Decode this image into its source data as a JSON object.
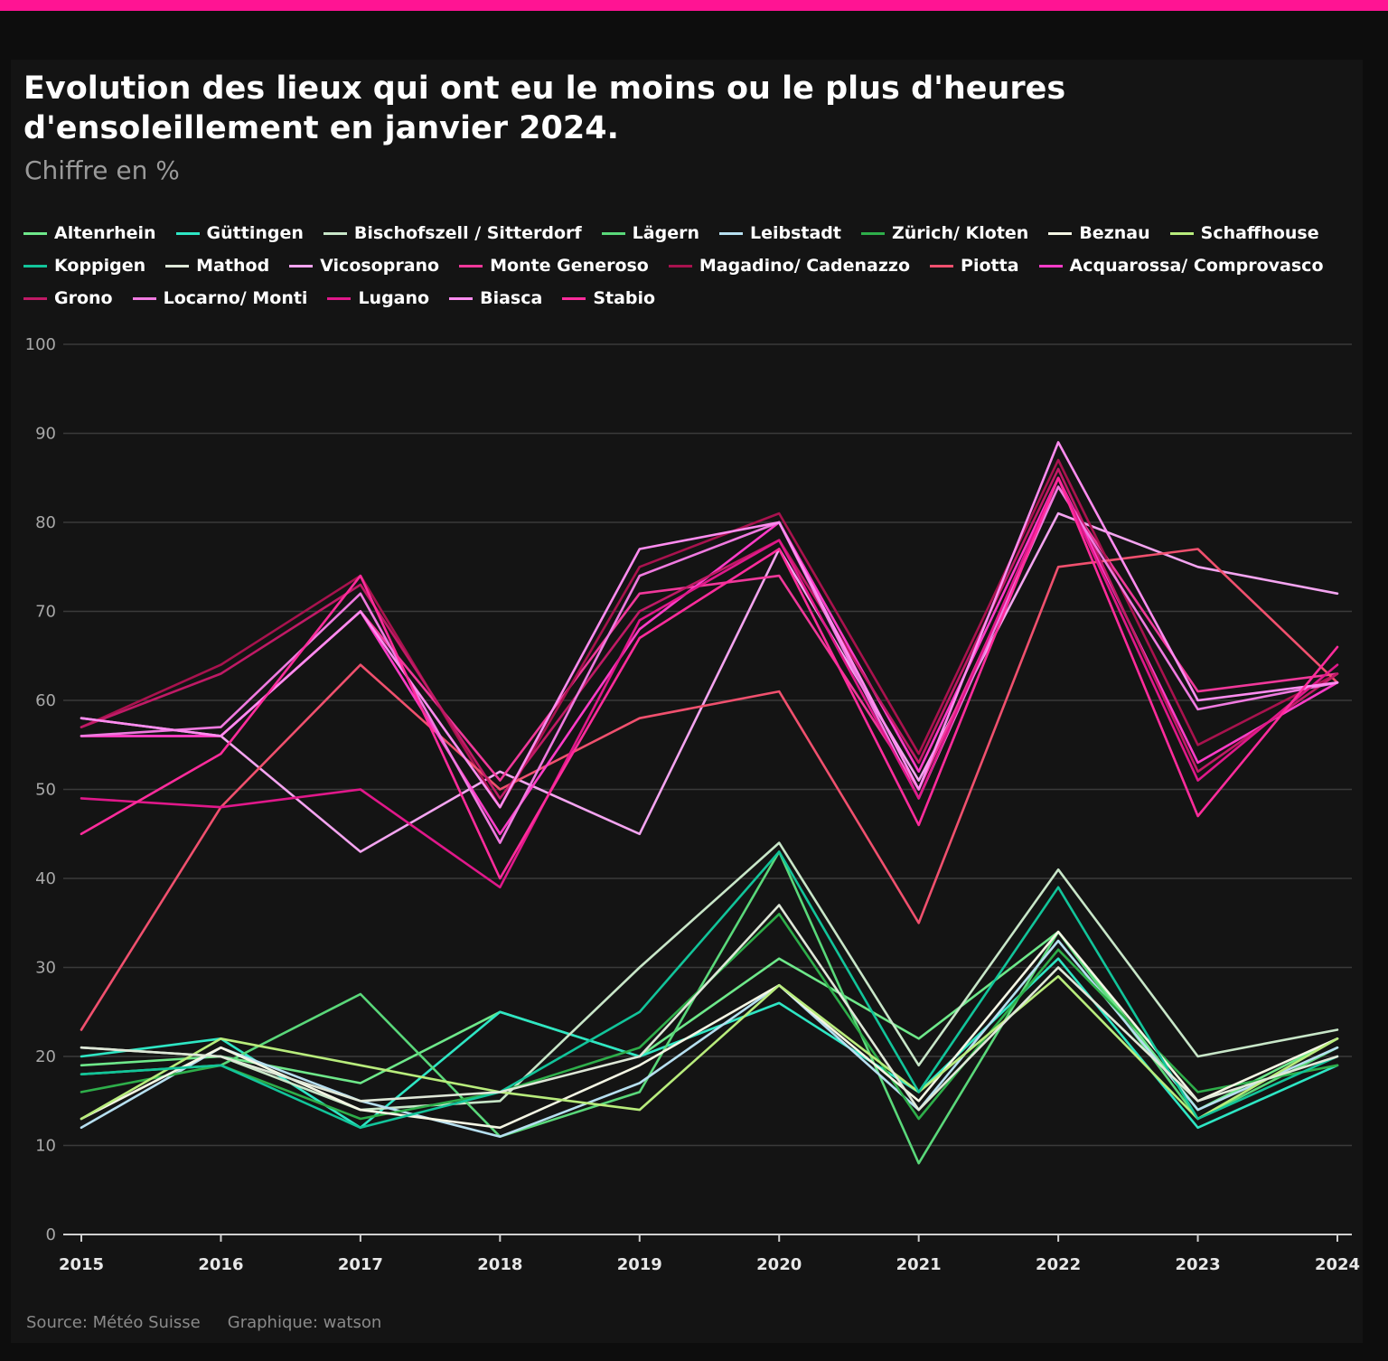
{
  "header": {
    "title": "Evolution des lieux qui ont eu le moins ou le plus d'heures d'ensoleillement en janvier 2024.",
    "subtitle": "Chiffre en %"
  },
  "footer": {
    "source": "Source: Météo Suisse",
    "graphic": "Graphique: watson"
  },
  "chart_data": {
    "type": "line",
    "title": "Evolution des lieux qui ont eu le moins ou le plus d'heures d'ensoleillement en janvier 2024.",
    "ylabel": "Chiffre en %",
    "xlabel": "",
    "ylim": [
      0,
      100
    ],
    "yticks": [
      0,
      10,
      20,
      30,
      40,
      50,
      60,
      70,
      80,
      90,
      100
    ],
    "x": [
      "2015",
      "2016",
      "2017",
      "2018",
      "2019",
      "2020",
      "2021",
      "2022",
      "2023",
      "2024"
    ],
    "legend_position": "top",
    "grid": true,
    "series": [
      {
        "name": "Altenrhein",
        "color": "#6ee88a",
        "values": [
          19,
          20,
          17,
          25,
          20,
          31,
          22,
          34,
          14,
          22
        ]
      },
      {
        "name": "Güttingen",
        "color": "#2ee6c4",
        "values": [
          20,
          22,
          12,
          25,
          20,
          26,
          16,
          31,
          12,
          19
        ]
      },
      {
        "name": "Bischofszell / Sitterdorf",
        "color": "#c8e6c8",
        "values": [
          21,
          20,
          14,
          15,
          30,
          44,
          19,
          41,
          20,
          23
        ]
      },
      {
        "name": "Lägern",
        "color": "#5ad87a",
        "values": [
          18,
          19,
          27,
          11,
          16,
          43,
          8,
          34,
          13,
          21
        ]
      },
      {
        "name": "Leibstadt",
        "color": "#b6dff0",
        "values": [
          12,
          21,
          15,
          11,
          17,
          28,
          14,
          33,
          14,
          21
        ]
      },
      {
        "name": "Zürich/ Kloten",
        "color": "#2eae4a",
        "values": [
          16,
          19,
          13,
          16,
          21,
          36,
          13,
          32,
          16,
          19
        ]
      },
      {
        "name": "Beznau",
        "color": "#f4f6e4",
        "values": [
          13,
          21,
          14,
          12,
          19,
          28,
          15,
          34,
          15,
          22
        ]
      },
      {
        "name": "Schaffhouse",
        "color": "#b8ec7c",
        "values": [
          13,
          22,
          19,
          16,
          14,
          28,
          16,
          29,
          13,
          22
        ]
      },
      {
        "name": "Koppigen",
        "color": "#12c49a",
        "values": [
          18,
          19,
          12,
          16,
          25,
          43,
          16,
          39,
          13,
          20
        ]
      },
      {
        "name": "Mathod",
        "color": "#dfe8d8",
        "values": [
          21,
          20,
          15,
          16,
          20,
          37,
          14,
          30,
          15,
          20
        ]
      },
      {
        "name": "Vicosoprano",
        "color": "#f4a4f0",
        "values": [
          58,
          56,
          43,
          52,
          45,
          77,
          51,
          81,
          75,
          72
        ]
      },
      {
        "name": "Monte Generoso",
        "color": "#f0389a",
        "values": [
          56,
          56,
          70,
          51,
          72,
          74,
          50,
          84,
          61,
          63
        ]
      },
      {
        "name": "Magadino/ Cadenazzo",
        "color": "#a8124e",
        "values": [
          57,
          64,
          74,
          48,
          75,
          81,
          54,
          87,
          55,
          63
        ]
      },
      {
        "name": "Piotta",
        "color": "#f0506e",
        "values": [
          23,
          48,
          64,
          50,
          58,
          61,
          35,
          75,
          77,
          62
        ]
      },
      {
        "name": "Acquarossa/ Comprovasco",
        "color": "#ff3cc8",
        "values": [
          56,
          56,
          70,
          45,
          68,
          80,
          52,
          85,
          53,
          62
        ]
      },
      {
        "name": "Grono",
        "color": "#c01a66",
        "values": [
          57,
          63,
          73,
          49,
          70,
          78,
          53,
          86,
          52,
          63
        ]
      },
      {
        "name": "Locarno/ Monti",
        "color": "#f07ae0",
        "values": [
          56,
          57,
          72,
          44,
          74,
          80,
          49,
          84,
          59,
          62
        ]
      },
      {
        "name": "Lugano",
        "color": "#e0188a",
        "values": [
          49,
          48,
          50,
          39,
          69,
          78,
          49,
          85,
          51,
          64
        ]
      },
      {
        "name": "Biasca",
        "color": "#ff8cf0",
        "values": [
          58,
          56,
          70,
          48,
          77,
          80,
          50,
          89,
          60,
          62
        ]
      },
      {
        "name": "Stabio",
        "color": "#ff2c9c",
        "values": [
          45,
          54,
          74,
          40,
          67,
          77,
          46,
          85,
          47,
          66
        ]
      }
    ]
  }
}
